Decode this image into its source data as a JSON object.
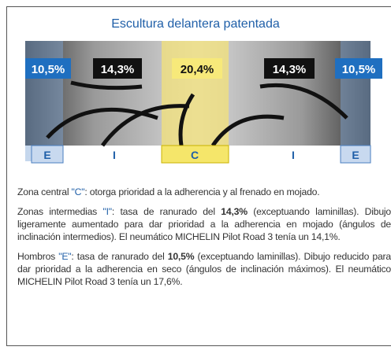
{
  "header": {
    "title": "Escultura delantera patentada"
  },
  "badges": [
    "10,5%",
    "14,3%",
    "20,4%",
    "14,3%",
    "10,5%"
  ],
  "zones": [
    "E",
    "I",
    "C",
    "I",
    "E"
  ],
  "paragraphs": [
    {
      "lead": "Zona central ",
      "letter": "\"C\"",
      "text": ": otorga prioridad a la adherencia y al frenado en mojado."
    },
    {
      "lead": "Zonas intermedias ",
      "letter": "\"I\"",
      "text": ": tasa de ranurado del ",
      "bold": "14,3%",
      "rest": " (exceptuando laminillas). Dibujo ligeramente aumentado para dar prioridad a la adherencia en mojado (ángulos de inclinación intermedios). El neumático MICHELIN Pilot Road 3 tenía un 14,1%."
    },
    {
      "lead": "Hombros ",
      "letter": "\"E\"",
      "text": ": tasa de ranurado del ",
      "bold": "10,5%",
      "rest": " (exceptuando laminillas). Dibujo reducido para dar prioridad a la adherencia en seco (ángulos de inclinación máximos). El neumático MICHELIN Pilot Road 3 tenía un 17,6%."
    }
  ]
}
